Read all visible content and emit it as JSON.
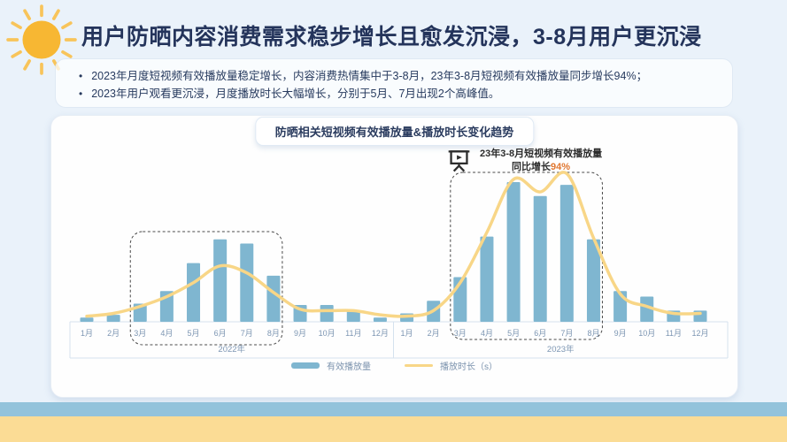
{
  "page": {
    "title": "用户防晒内容消费需求稳步增长且愈发沉浸，3-8月用户更沉浸",
    "bullets": [
      "2023年月度短视频有效播放量稳定增长，内容消费热情集中于3-8月，23年3-8月短视频有效播放量同步增长94%；",
      "2023年用户观看更沉浸，月度播放时长大幅增长，分别于5月、7月出现2个高峰值。"
    ]
  },
  "chart": {
    "title": "防晒相关短视频有效播放量&播放时长变化趋势",
    "annotation": {
      "line1": "23年3-8月短视频有效播放量",
      "line2_prefix": "同比增长",
      "line2_value": "94%"
    },
    "legend": {
      "bar": "有效播放量",
      "line": "播放时长（s）"
    }
  },
  "chart_data": {
    "type": "bar",
    "title": "防晒相关短视频有效播放量&播放时长变化趋势",
    "months": [
      "1月",
      "2月",
      "3月",
      "4月",
      "5月",
      "6月",
      "7月",
      "8月",
      "9月",
      "10月",
      "11月",
      "12月"
    ],
    "years": [
      "2022年",
      "2023年"
    ],
    "series": [
      {
        "name": "有效播放量",
        "type": "bar",
        "values_2022": [
          3,
          5,
          13,
          22,
          42,
          59,
          56,
          33,
          12,
          12,
          8,
          3
        ],
        "values_2023": [
          6,
          15,
          32,
          61,
          100,
          90,
          98,
          59,
          22,
          18,
          8,
          8
        ]
      },
      {
        "name": "播放时长（s）",
        "type": "line",
        "values_2022": [
          4,
          6,
          11,
          18,
          28,
          40,
          35,
          21,
          9,
          8,
          8,
          5
        ],
        "values_2023": [
          4,
          8,
          28,
          64,
          102,
          93,
          106,
          60,
          20,
          11,
          6,
          6
        ]
      }
    ],
    "value_scale": "relative index estimated from pixels; 100 = 2023年5月 有效播放量 (no y-axis labels shown)",
    "ylim": [
      0,
      110
    ],
    "grid": false,
    "legend_position": "bottom-center",
    "highlights": [
      {
        "year": "2022年",
        "range": "3月-8月"
      },
      {
        "year": "2023年",
        "range": "3月-8月",
        "annotation": "23年3-8月短视频有效播放量同比增长94%"
      }
    ]
  },
  "colors": {
    "bar": "#7FB6D0",
    "line": "#F8D687",
    "annotation_accent": "#E0762F",
    "axis_line": "#D5E2EE",
    "axis_text": "#7D96B3",
    "highlight_box": "#4a4a4a",
    "sun": "#F7B733",
    "sun_rays": "#F8C45A",
    "band_blue": "#93C3DB",
    "band_yellow": "#FBDC95"
  }
}
